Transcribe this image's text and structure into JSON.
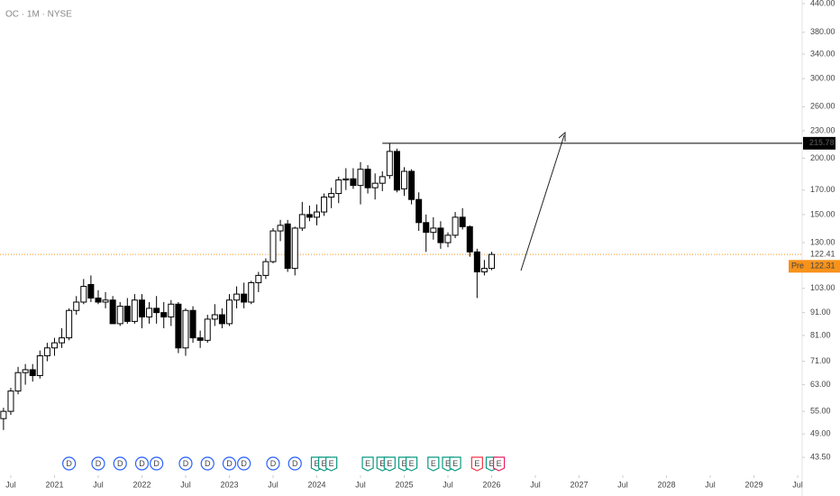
{
  "chart_data": {
    "type": "candlestick",
    "title": "OC · 1M · NYSE",
    "log_scale": true,
    "up_color": "#ffffff",
    "down_color": "#000000",
    "x": [
      "2020-06",
      "2020-07",
      "2020-08",
      "2020-09",
      "2020-10",
      "2020-11",
      "2020-12",
      "2021-01",
      "2021-02",
      "2021-03",
      "2021-04",
      "2021-05",
      "2021-06",
      "2021-07",
      "2021-08",
      "2021-09",
      "2021-10",
      "2021-11",
      "2021-12",
      "2022-01",
      "2022-02",
      "2022-03",
      "2022-04",
      "2022-05",
      "2022-06",
      "2022-07",
      "2022-08",
      "2022-09",
      "2022-10",
      "2022-11",
      "2022-12",
      "2023-01",
      "2023-02",
      "2023-03",
      "2023-04",
      "2023-05",
      "2023-06",
      "2023-07",
      "2023-08",
      "2023-09",
      "2023-10",
      "2023-11",
      "2023-12",
      "2024-01",
      "2024-02",
      "2024-03",
      "2024-04",
      "2024-05",
      "2024-06",
      "2024-07",
      "2024-08",
      "2024-09",
      "2024-10",
      "2024-11",
      "2024-12",
      "2025-01",
      "2025-02",
      "2025-03",
      "2025-04",
      "2025-05",
      "2025-06",
      "2025-07",
      "2025-08",
      "2025-09",
      "2025-10",
      "2025-11",
      "2025-12",
      "2026-01"
    ],
    "open": [
      53,
      55,
      61,
      67,
      68,
      66,
      73,
      76,
      78,
      80,
      92,
      96,
      105,
      98,
      96,
      97,
      86,
      94,
      87,
      97,
      89,
      93,
      91,
      89,
      95,
      76,
      92,
      80,
      79,
      88,
      90,
      86,
      97,
      100,
      96,
      106,
      110,
      118,
      138,
      143,
      114,
      140,
      150,
      148,
      152,
      164,
      167,
      179,
      180,
      174,
      189,
      172,
      176,
      183,
      207,
      171,
      187,
      162,
      144,
      137,
      140,
      130,
      135,
      148,
      141,
      124,
      112,
      114
    ],
    "high": [
      56,
      62,
      69,
      70,
      70,
      75,
      78,
      80,
      84,
      93,
      99,
      108,
      110,
      102,
      101,
      99,
      96,
      98,
      100,
      100,
      96,
      99,
      96,
      97,
      96,
      93,
      94,
      83,
      90,
      95,
      93,
      100,
      104,
      106,
      107,
      112,
      120,
      140,
      146,
      146,
      141,
      160,
      157,
      158,
      167,
      172,
      182,
      190,
      190,
      196,
      193,
      185,
      187,
      215.78,
      210,
      191,
      189,
      168,
      150,
      148,
      145,
      137,
      152,
      155,
      142,
      126,
      119,
      124
    ],
    "low": [
      50,
      54,
      60,
      63,
      64,
      65,
      71,
      73,
      76,
      79,
      90,
      95,
      96,
      95,
      93,
      86,
      85,
      86,
      86,
      84,
      86,
      86,
      84,
      85,
      74,
      73,
      78,
      76,
      78,
      85,
      84,
      85,
      93,
      93,
      95,
      101,
      108,
      117,
      131,
      112,
      110,
      138,
      145,
      142,
      149,
      155,
      159,
      170,
      171,
      158,
      167,
      162,
      169,
      180,
      168,
      165,
      158,
      138,
      124,
      132,
      126,
      127,
      133,
      139,
      121,
      98,
      110,
      113
    ],
    "close": [
      55,
      61,
      67,
      68,
      66,
      73,
      76,
      78,
      80,
      92,
      96,
      104,
      98,
      96,
      97,
      86,
      94,
      87,
      97,
      89,
      93,
      91,
      89,
      95,
      76,
      92,
      80,
      79,
      88,
      90,
      86,
      97,
      100,
      96,
      106,
      110,
      118,
      138,
      142,
      114,
      140,
      150,
      148,
      152,
      164,
      167,
      179,
      180,
      174,
      189,
      172,
      176,
      182,
      207,
      170,
      187,
      162,
      144,
      137,
      140,
      130,
      135,
      148,
      141,
      124,
      112,
      114,
      122.41
    ],
    "xlim": [
      "2020-05",
      "2029-08"
    ],
    "xticks": [
      {
        "value": "2020-07",
        "label": "Jul"
      },
      {
        "value": "2021-01",
        "label": "2021"
      },
      {
        "value": "2021-07",
        "label": "Jul"
      },
      {
        "value": "2022-01",
        "label": "2022"
      },
      {
        "value": "2022-07",
        "label": "Jul"
      },
      {
        "value": "2023-01",
        "label": "2023"
      },
      {
        "value": "2023-07",
        "label": "Jul"
      },
      {
        "value": "2024-01",
        "label": "2024"
      },
      {
        "value": "2024-07",
        "label": "Jul"
      },
      {
        "value": "2025-01",
        "label": "2025"
      },
      {
        "value": "2025-07",
        "label": "Jul"
      },
      {
        "value": "2026-01",
        "label": "2026"
      },
      {
        "value": "2026-07",
        "label": "Jul"
      },
      {
        "value": "2027-01",
        "label": "2027"
      },
      {
        "value": "2027-07",
        "label": "Jul"
      },
      {
        "value": "2028-01",
        "label": "2028"
      },
      {
        "value": "2028-07",
        "label": "Jul"
      },
      {
        "value": "2029-01",
        "label": "2029"
      },
      {
        "value": "2029-07",
        "label": "Jul"
      }
    ],
    "ylim": [
      39.7,
      448
    ],
    "yticks": [
      {
        "value": 440,
        "label": "440.00"
      },
      {
        "value": 380,
        "label": "380.00"
      },
      {
        "value": 340,
        "label": "340.00"
      },
      {
        "value": 300,
        "label": "300.00"
      },
      {
        "value": 260,
        "label": "260.00"
      },
      {
        "value": 230,
        "label": "230.00"
      },
      {
        "value": 200,
        "label": "200.00"
      },
      {
        "value": 170,
        "label": "170.00"
      },
      {
        "value": 150,
        "label": "150.00"
      },
      {
        "value": 130,
        "label": "130.00"
      },
      {
        "value": 103,
        "label": "103.00"
      },
      {
        "value": 91,
        "label": "91.00"
      },
      {
        "value": 81,
        "label": "81.00"
      },
      {
        "value": 71,
        "label": "71.00"
      },
      {
        "value": 63,
        "label": "63.00"
      },
      {
        "value": 55,
        "label": "55.00"
      },
      {
        "value": 49,
        "label": "49.00"
      },
      {
        "value": 43.5,
        "label": "43.50"
      }
    ],
    "hline": {
      "value": 215.78,
      "label": "215.78",
      "x_start": "2024-10",
      "color": "#000000"
    },
    "last_price": {
      "value": 122.41,
      "label": "122.41",
      "color": "#f7931a"
    },
    "pre_price": {
      "tag": "Pre",
      "value": 122.31,
      "label": "122.31",
      "color": "#f7931a"
    },
    "events": [
      {
        "label": "D",
        "x": "2021-03",
        "color": "#2962ff"
      },
      {
        "label": "D",
        "x": "2021-07",
        "color": "#2962ff"
      },
      {
        "label": "D",
        "x": "2021-10",
        "color": "#2962ff"
      },
      {
        "label": "D",
        "x": "2022-01",
        "color": "#2962ff"
      },
      {
        "label": "D",
        "x": "2022-03",
        "color": "#2962ff"
      },
      {
        "label": "D",
        "x": "2022-07",
        "color": "#2962ff"
      },
      {
        "label": "D",
        "x": "2022-10",
        "color": "#2962ff"
      },
      {
        "label": "D",
        "x": "2023-01",
        "color": "#2962ff"
      },
      {
        "label": "D",
        "x": "2023-03",
        "color": "#2962ff"
      },
      {
        "label": "D",
        "x": "2023-07",
        "color": "#2962ff"
      },
      {
        "label": "D",
        "x": "2023-10",
        "color": "#2962ff"
      },
      {
        "label": "E",
        "x": "2024-01",
        "color": "#089981"
      },
      {
        "label": "E",
        "x": "2024-02",
        "color": "#089981"
      },
      {
        "label": "E",
        "x": "2024-03",
        "color": "#089981"
      },
      {
        "label": "E",
        "x": "2024-08",
        "color": "#089981"
      },
      {
        "label": "E",
        "x": "2024-10",
        "color": "#089981"
      },
      {
        "label": "E",
        "x": "2024-11",
        "color": "#089981"
      },
      {
        "label": "E",
        "x": "2025-01",
        "color": "#089981"
      },
      {
        "label": "E",
        "x": "2025-02",
        "color": "#089981"
      },
      {
        "label": "E",
        "x": "2025-05",
        "color": "#089981"
      },
      {
        "label": "E",
        "x": "2025-07",
        "color": "#089981"
      },
      {
        "label": "E",
        "x": "2025-08",
        "color": "#089981"
      },
      {
        "label": "E",
        "x": "2025-11",
        "color": "#f23645"
      },
      {
        "label": "E",
        "x": "2026-01",
        "color": "#089981"
      },
      {
        "label": "E",
        "x": "2026-02",
        "color": "#e91e63"
      }
    ]
  }
}
